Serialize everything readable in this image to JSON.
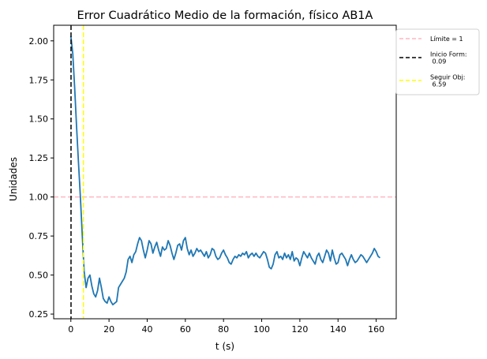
{
  "chart_data": {
    "type": "line",
    "title": "Error Cuadrático Medio de la formación, físico AB1A",
    "xlabel": "t (s)",
    "ylabel": "Unidades",
    "xlim": [
      -9,
      170.5
    ],
    "ylim": [
      0.22,
      2.1
    ],
    "xticks": [
      0,
      20,
      40,
      60,
      80,
      100,
      120,
      140,
      160
    ],
    "xtick_labels": [
      "0",
      "20",
      "40",
      "60",
      "80",
      "100",
      "120",
      "140",
      "160"
    ],
    "yticks": [
      0.25,
      0.5,
      0.75,
      1.0,
      1.25,
      1.5,
      1.75,
      2.0
    ],
    "ytick_labels": [
      "0.25",
      "0.50",
      "0.75",
      "1.00",
      "1.25",
      "1.50",
      "1.75",
      "2.00"
    ],
    "grid": false,
    "legend_position": "outside-right",
    "series": [
      {
        "color": "#1f77b4",
        "x": [
          0,
          1,
          2,
          3,
          4,
          5,
          6,
          7,
          8,
          9,
          10,
          11,
          12,
          13,
          14,
          15,
          16,
          17,
          18,
          19,
          20,
          21,
          22,
          23,
          24,
          25,
          26,
          27,
          28,
          29,
          30,
          31,
          32,
          33,
          34,
          35,
          36,
          37,
          38,
          39,
          40,
          41,
          42,
          43,
          44,
          45,
          46,
          47,
          48,
          49,
          50,
          51,
          52,
          53,
          54,
          55,
          56,
          57,
          58,
          59,
          60,
          61,
          62,
          63,
          64,
          65,
          66,
          67,
          68,
          69,
          70,
          71,
          72,
          73,
          74,
          75,
          76,
          77,
          78,
          79,
          80,
          81,
          82,
          83,
          84,
          85,
          86,
          87,
          88,
          89,
          90,
          91,
          92,
          93,
          94,
          95,
          96,
          97,
          98,
          99,
          100,
          101,
          102,
          103,
          104,
          105,
          106,
          107,
          108,
          109,
          110,
          111,
          112,
          113,
          114,
          115,
          116,
          117,
          118,
          119,
          120,
          121,
          122,
          123,
          124,
          125,
          126,
          127,
          128,
          129,
          130,
          131,
          132,
          133,
          134,
          135,
          136,
          137,
          138,
          139,
          140,
          141,
          142,
          143,
          144,
          145,
          146,
          147,
          148,
          149,
          150,
          151,
          152,
          153,
          154,
          155,
          156,
          157,
          158,
          159,
          160,
          161,
          162
        ],
        "y": [
          2.03,
          1.92,
          1.7,
          1.45,
          1.22,
          1.0,
          0.75,
          0.52,
          0.42,
          0.48,
          0.5,
          0.43,
          0.38,
          0.36,
          0.4,
          0.48,
          0.42,
          0.35,
          0.33,
          0.32,
          0.36,
          0.33,
          0.31,
          0.32,
          0.33,
          0.42,
          0.44,
          0.46,
          0.48,
          0.52,
          0.6,
          0.62,
          0.58,
          0.63,
          0.65,
          0.7,
          0.74,
          0.72,
          0.66,
          0.61,
          0.66,
          0.72,
          0.7,
          0.64,
          0.68,
          0.71,
          0.66,
          0.62,
          0.68,
          0.66,
          0.67,
          0.72,
          0.69,
          0.64,
          0.6,
          0.64,
          0.69,
          0.7,
          0.66,
          0.72,
          0.74,
          0.67,
          0.63,
          0.66,
          0.62,
          0.64,
          0.67,
          0.65,
          0.66,
          0.64,
          0.62,
          0.65,
          0.61,
          0.63,
          0.67,
          0.66,
          0.62,
          0.6,
          0.61,
          0.64,
          0.66,
          0.63,
          0.61,
          0.58,
          0.57,
          0.6,
          0.62,
          0.61,
          0.63,
          0.62,
          0.64,
          0.63,
          0.65,
          0.61,
          0.63,
          0.64,
          0.62,
          0.64,
          0.62,
          0.61,
          0.63,
          0.65,
          0.64,
          0.6,
          0.55,
          0.54,
          0.57,
          0.63,
          0.65,
          0.61,
          0.62,
          0.6,
          0.64,
          0.61,
          0.63,
          0.6,
          0.65,
          0.59,
          0.61,
          0.6,
          0.56,
          0.61,
          0.65,
          0.63,
          0.61,
          0.64,
          0.61,
          0.59,
          0.57,
          0.62,
          0.64,
          0.6,
          0.58,
          0.62,
          0.66,
          0.64,
          0.59,
          0.66,
          0.61,
          0.57,
          0.58,
          0.63,
          0.64,
          0.62,
          0.6,
          0.56,
          0.6,
          0.63,
          0.6,
          0.58,
          0.59,
          0.61,
          0.63,
          0.62,
          0.6,
          0.58,
          0.6,
          0.62,
          0.64,
          0.67,
          0.65,
          0.62,
          0.61
        ]
      }
    ],
    "hlines": [
      {
        "y": 1.0,
        "color": "#ffb6c1",
        "style": "dashed",
        "label": "Límite = 1"
      }
    ],
    "vlines": [
      {
        "x": 0.09,
        "color": "#000000",
        "style": "dashed",
        "label": "Inicio Form:\n 0.09"
      },
      {
        "x": 6.59,
        "color": "#ffff00",
        "style": "dashed",
        "label": "Seguir Obj:\n 6.59"
      }
    ]
  }
}
